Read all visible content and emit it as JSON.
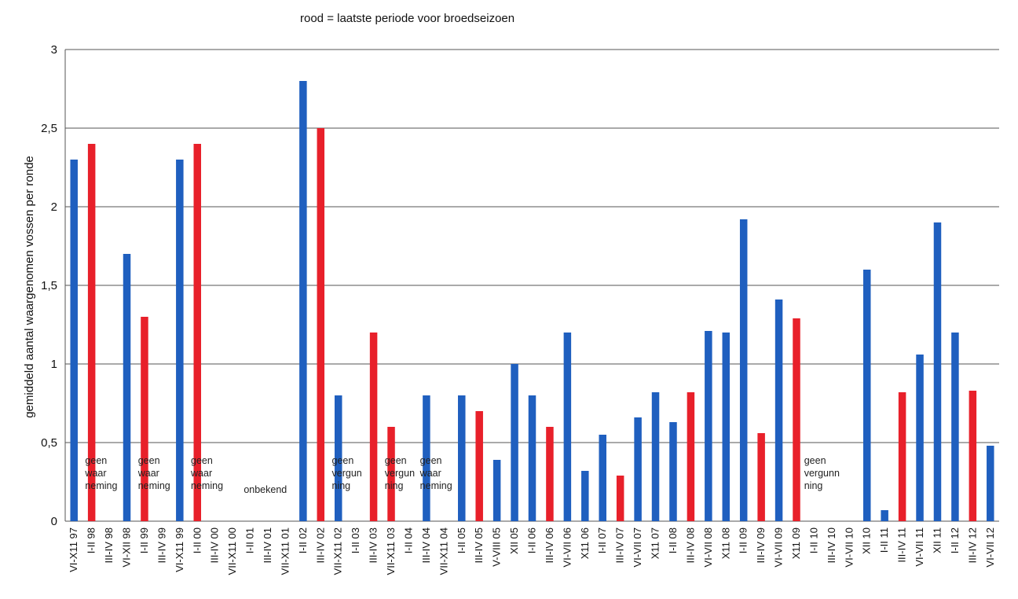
{
  "chart_data": {
    "type": "bar",
    "title": "rood = laatste periode voor broedseizoen",
    "xlabel": "",
    "ylabel": "gemiddeld aantal waargenomen vossen per ronde",
    "ylim": [
      0,
      3
    ],
    "yticks": [
      "0",
      "0,5",
      "1",
      "1,5",
      "2",
      "2,5",
      "3"
    ],
    "grid": true,
    "colors": {
      "blue": "#1f5fbf",
      "red": "#e8202a"
    },
    "categories": [
      "VI-X11 97",
      "I-II 98",
      "III-IV 98",
      "VI-XII 98",
      "I-II 99",
      "III-IV 99",
      "VI-X11 99",
      "I-II 00",
      "III-IV 00",
      "VII-X11 00",
      "I-II 01",
      "III-IV 01",
      "VII-X11 01",
      "I-II 02",
      "III-IV 02",
      "VII-X11 02",
      "I-II 03",
      "III-IV 03",
      "VII-X11 03",
      "I-II 04",
      "III-IV 04",
      "VII-X11 04",
      "I-II 05",
      "III-IV 05",
      "V-VIII 05",
      "XII 05",
      "I-II 06",
      "III-IV 06",
      "VI-VII 06",
      "X11 06",
      "I-II 07",
      "III-IV 07",
      "VI-VII 07",
      "X11 07",
      "I-II 08",
      "III-IV 08",
      "VI-VII 08",
      "X11 08",
      "I-II 09",
      "III-IV 09",
      "VI-VII 09",
      "X11 09",
      "I-II 10",
      "III-IV 10",
      "VI-VII 10",
      "XII 10",
      "I-II 11",
      "III-IV 11",
      "VI-VII 11",
      "XII 11",
      "I-II 12",
      "III-IV 12",
      "VI-VII 12"
    ],
    "values": [
      2.3,
      2.4,
      null,
      1.7,
      1.3,
      null,
      2.3,
      2.4,
      null,
      null,
      null,
      null,
      null,
      2.8,
      2.5,
      0.8,
      null,
      1.2,
      0.6,
      null,
      0.8,
      null,
      0.8,
      0.7,
      0.39,
      1.0,
      0.8,
      0.6,
      1.2,
      0.32,
      0.55,
      0.29,
      0.66,
      0.82,
      0.63,
      0.82,
      1.21,
      1.2,
      1.92,
      0.56,
      1.41,
      1.29,
      null,
      null,
      null,
      1.6,
      0.07,
      0.82,
      1.06,
      1.9,
      1.2,
      0.83,
      0.48
    ],
    "bar_colors": [
      "blue",
      "red",
      "",
      "blue",
      "red",
      "",
      "blue",
      "red",
      "",
      "",
      "",
      "",
      "",
      "blue",
      "red",
      "blue",
      "",
      "red",
      "red",
      "",
      "blue",
      "",
      "blue",
      "red",
      "blue",
      "blue",
      "blue",
      "red",
      "blue",
      "blue",
      "blue",
      "red",
      "blue",
      "blue",
      "blue",
      "red",
      "blue",
      "blue",
      "blue",
      "red",
      "blue",
      "red",
      "",
      "",
      "",
      "blue",
      "blue",
      "red",
      "blue",
      "blue",
      "blue",
      "red",
      "blue"
    ],
    "annotations": [
      {
        "at": 1,
        "lines": [
          "geen",
          "waar",
          "neming"
        ]
      },
      {
        "at": 4,
        "lines": [
          "geen",
          "waar",
          "neming"
        ]
      },
      {
        "at": 7,
        "lines": [
          "geen",
          "waar",
          "neming"
        ]
      },
      {
        "at": 10,
        "lines": [
          "onbekend"
        ]
      },
      {
        "at": 15,
        "lines": [
          "geen",
          "vergun",
          "ning"
        ]
      },
      {
        "at": 18,
        "lines": [
          "geen",
          "vergun",
          "ning"
        ]
      },
      {
        "at": 20,
        "lines": [
          "geen",
          "waar",
          "neming"
        ]
      },
      {
        "at": 41.8,
        "lines": [
          "geen",
          "vergunn",
          "ning"
        ]
      }
    ]
  }
}
